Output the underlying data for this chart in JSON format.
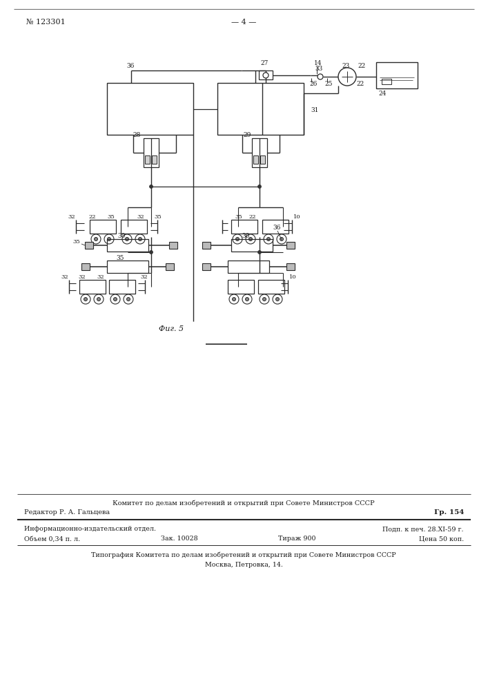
{
  "page_number": "№ 123301",
  "page_label": "— 4 —",
  "fig_caption": "Фиг. 5",
  "bg_color": "#ffffff",
  "line_color": "#2a2a2a",
  "text_color": "#1a1a1a",
  "footer_line1": "Комитет по делам изобретений и открытий при Совете Министров СССР",
  "footer_line2": "Редактор Р. А. Гальцева",
  "footer_line2_right": "Гр. 154",
  "footer_line3_left": "Информационно-издательский отдел.",
  "footer_line3_right": "Подп. к печ. 28.XI-59 г.",
  "footer_line4_left": "Объем 0,34 п. л.",
  "footer_line4_mid1": "Зак. 10028",
  "footer_line4_mid2": "Тираж 900",
  "footer_line4_right": "Цена 50 коп.",
  "footer_line5": "Типография Комитета по делам изобретений и открытий при Совете Министров СССР",
  "footer_line6": "Москва, Петровка, 14."
}
